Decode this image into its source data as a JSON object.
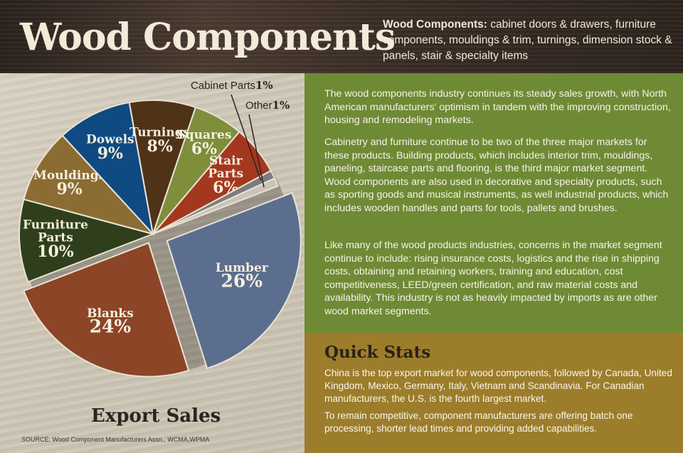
{
  "header": {
    "title": "Wood Components",
    "subtitle_lead": "Wood Components:",
    "subtitle_rest": " cabinet doors & drawers, furniture components, mouldings & trim, turnings, dimension stock & panels, stair & specialty items"
  },
  "info": {
    "paragraphs": [
      "The wood components industry continues its steady sales growth, with North American manufacturers' optimism in tandem with the improving construction, housing and remodeling markets.",
      "Cabinetry and furniture continue to be two of the three major markets for these products. Building products, which includes interior trim, mouldings, paneling, staircase parts and flooring, is the third major market segment. Wood components are also used in decorative and specialty products, such as sporting goods and musical instruments, as well industrial products, which includes wooden handles and parts for tools, pallets and brushes.",
      "Like many of the wood products industries, concerns in the market segment continue to include: rising insurance costs, logistics and the rise in shipping costs, obtaining and retaining workers, training and education, cost competitiveness, LEED/green certification, and raw material costs and availability. This industry is not as heavily impacted by imports as are other wood market segments."
    ]
  },
  "quick_stats": {
    "title": "Quick Stats",
    "paragraphs": [
      "China is the top export market for wood components, followed by Canada, United Kingdom, Mexico, Germany, Italy, Vietnam and Scandinavia. For Canadian manufacturers, the U.S. is the fourth largest market.",
      "To remain competitive, component manufacturers are offering batch one processing, shorter lead times and providing added capabilities."
    ]
  },
  "source": "SOURCE: Wood Component Manufacturers Assn., WCMA,WPMA",
  "colors": {
    "Lumber": "#5b6e8e",
    "Blanks": "#8c4526",
    "Furniture Parts": "#2f3f1c",
    "Mouldings": "#8b6d33",
    "Dowels": "#0f4a82",
    "Turnings": "#4f3317",
    "Squares": "#7e8e3a",
    "Stair Parts": "#a4381e",
    "Cabinet Parts": "#7c7c7c",
    "Other": "#c9c3b8"
  },
  "chart_data": {
    "type": "pie",
    "title": "Export Sales",
    "start_angle_deg": -21,
    "direction": "clockwise",
    "slices": [
      {
        "label": "Lumber",
        "value": 26
      },
      {
        "label": "Blanks",
        "value": 24
      },
      {
        "label": "Furniture Parts",
        "value": 10
      },
      {
        "label": "Mouldings",
        "value": 9
      },
      {
        "label": "Dowels",
        "value": 9
      },
      {
        "label": "Turnings",
        "value": 8
      },
      {
        "label": "Squares",
        "value": 6
      },
      {
        "label": "Stair Parts",
        "value": 6
      },
      {
        "label": "Cabinet Parts",
        "value": 1
      },
      {
        "label": "Other",
        "value": 1
      }
    ],
    "value_suffix": "%"
  }
}
